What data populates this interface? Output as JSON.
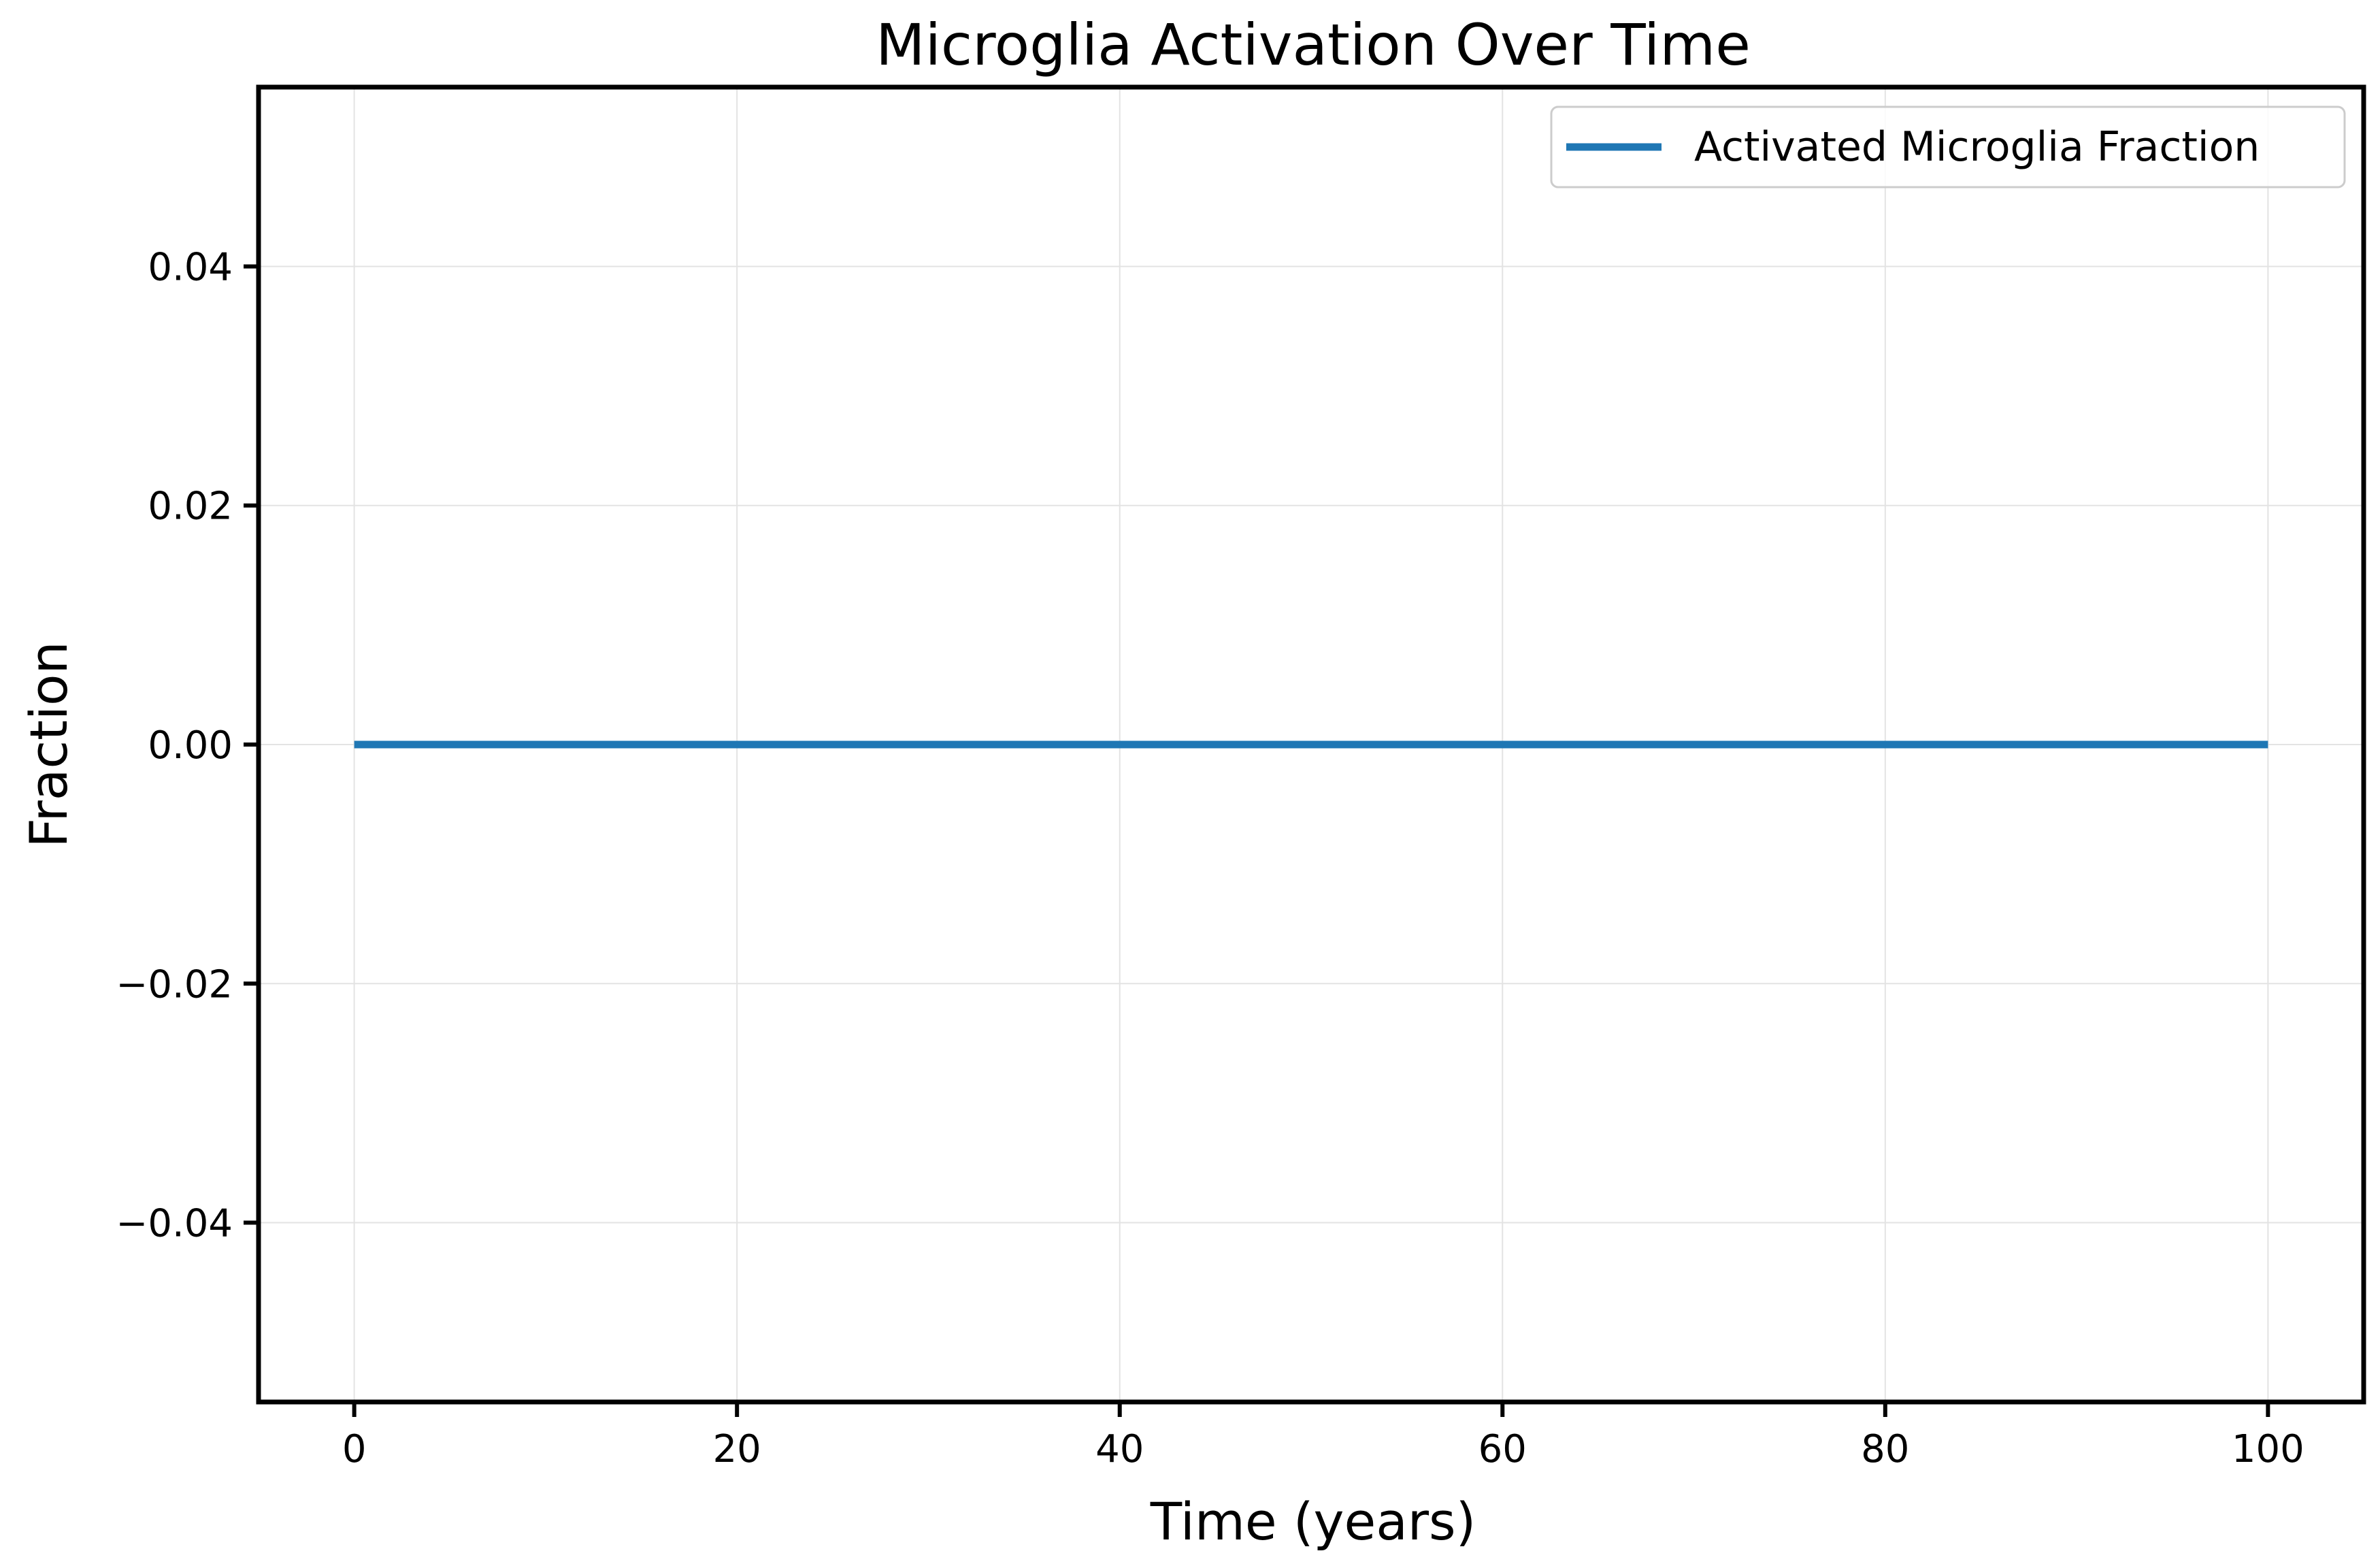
{
  "chart_data": {
    "type": "line",
    "title": "Microglia Activation Over Time",
    "xlabel": "Time (years)",
    "ylabel": "Fraction",
    "xlim": [
      -5,
      105
    ],
    "ylim": [
      -0.055,
      0.055
    ],
    "x_ticks": [
      0,
      20,
      40,
      60,
      80,
      100
    ],
    "x_tick_labels": [
      "0",
      "20",
      "40",
      "60",
      "80",
      "100"
    ],
    "y_ticks": [
      -0.04,
      -0.02,
      0.0,
      0.02,
      0.04
    ],
    "y_tick_labels": [
      "−0.04",
      "−0.02",
      "0.00",
      "0.02",
      "0.04"
    ],
    "grid": true,
    "legend_position": "top-right",
    "series": [
      {
        "name": "Activated Microglia Fraction",
        "color": "#1f77b4",
        "x": [
          0,
          100
        ],
        "y": [
          0.0,
          0.0
        ]
      }
    ]
  }
}
